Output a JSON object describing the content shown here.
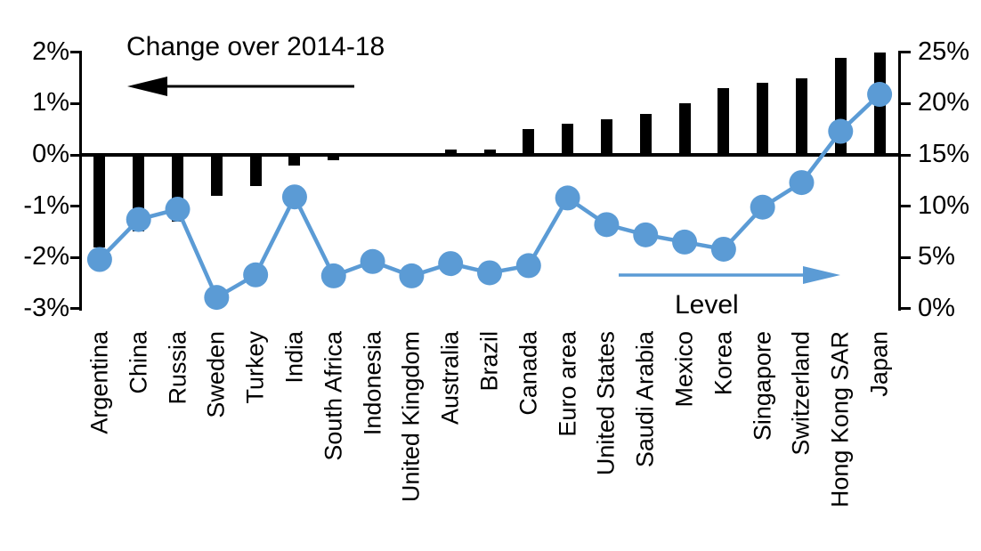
{
  "chart_data": {
    "type": "bar",
    "title": "",
    "categories": [
      "Argentina",
      "China",
      "Russia",
      "Sweden",
      "Turkey",
      "India",
      "South Africa",
      "Indonesia",
      "United Kingdom",
      "Australia",
      "Brazil",
      "Canada",
      "Euro area",
      "United States",
      "Saudi Arabia",
      "Mexico",
      "Korea",
      "Singapore",
      "Switzerland",
      "Hong Kong SAR",
      "Japan"
    ],
    "series": [
      {
        "name": "Change over 2014-18",
        "type": "bar",
        "axis": "left",
        "color": "#000000",
        "values": [
          -1.8,
          -1.5,
          -1.3,
          -0.8,
          -0.6,
          -0.2,
          -0.1,
          0,
          0,
          0.1,
          0.1,
          0.5,
          0.6,
          0.7,
          0.8,
          1.0,
          1.3,
          1.4,
          1.5,
          1.9,
          2.0
        ]
      },
      {
        "name": "Level",
        "type": "line",
        "axis": "right",
        "color": "#5B9BD5",
        "values": [
          4.8,
          8.7,
          9.7,
          1.1,
          3.3,
          10.9,
          3.2,
          4.6,
          3.2,
          4.4,
          3.5,
          4.2,
          10.8,
          8.2,
          7.2,
          6.5,
          5.8,
          9.9,
          12.3,
          17.3,
          20.9
        ]
      }
    ],
    "left_axis": {
      "min": -3,
      "max": 2,
      "tick_labels": [
        "2%",
        "1%",
        "0%",
        "-1%",
        "-2%",
        "-3%"
      ]
    },
    "right_axis": {
      "min": 0,
      "max": 25,
      "tick_labels": [
        "25%",
        "20%",
        "15%",
        "10%",
        "5%",
        "0%"
      ]
    },
    "annotations": {
      "bar_arrow_label": "Change over 2014-18",
      "line_arrow_label": "Level"
    },
    "grid": false,
    "legend_position": "in-plot annotations with arrows"
  }
}
